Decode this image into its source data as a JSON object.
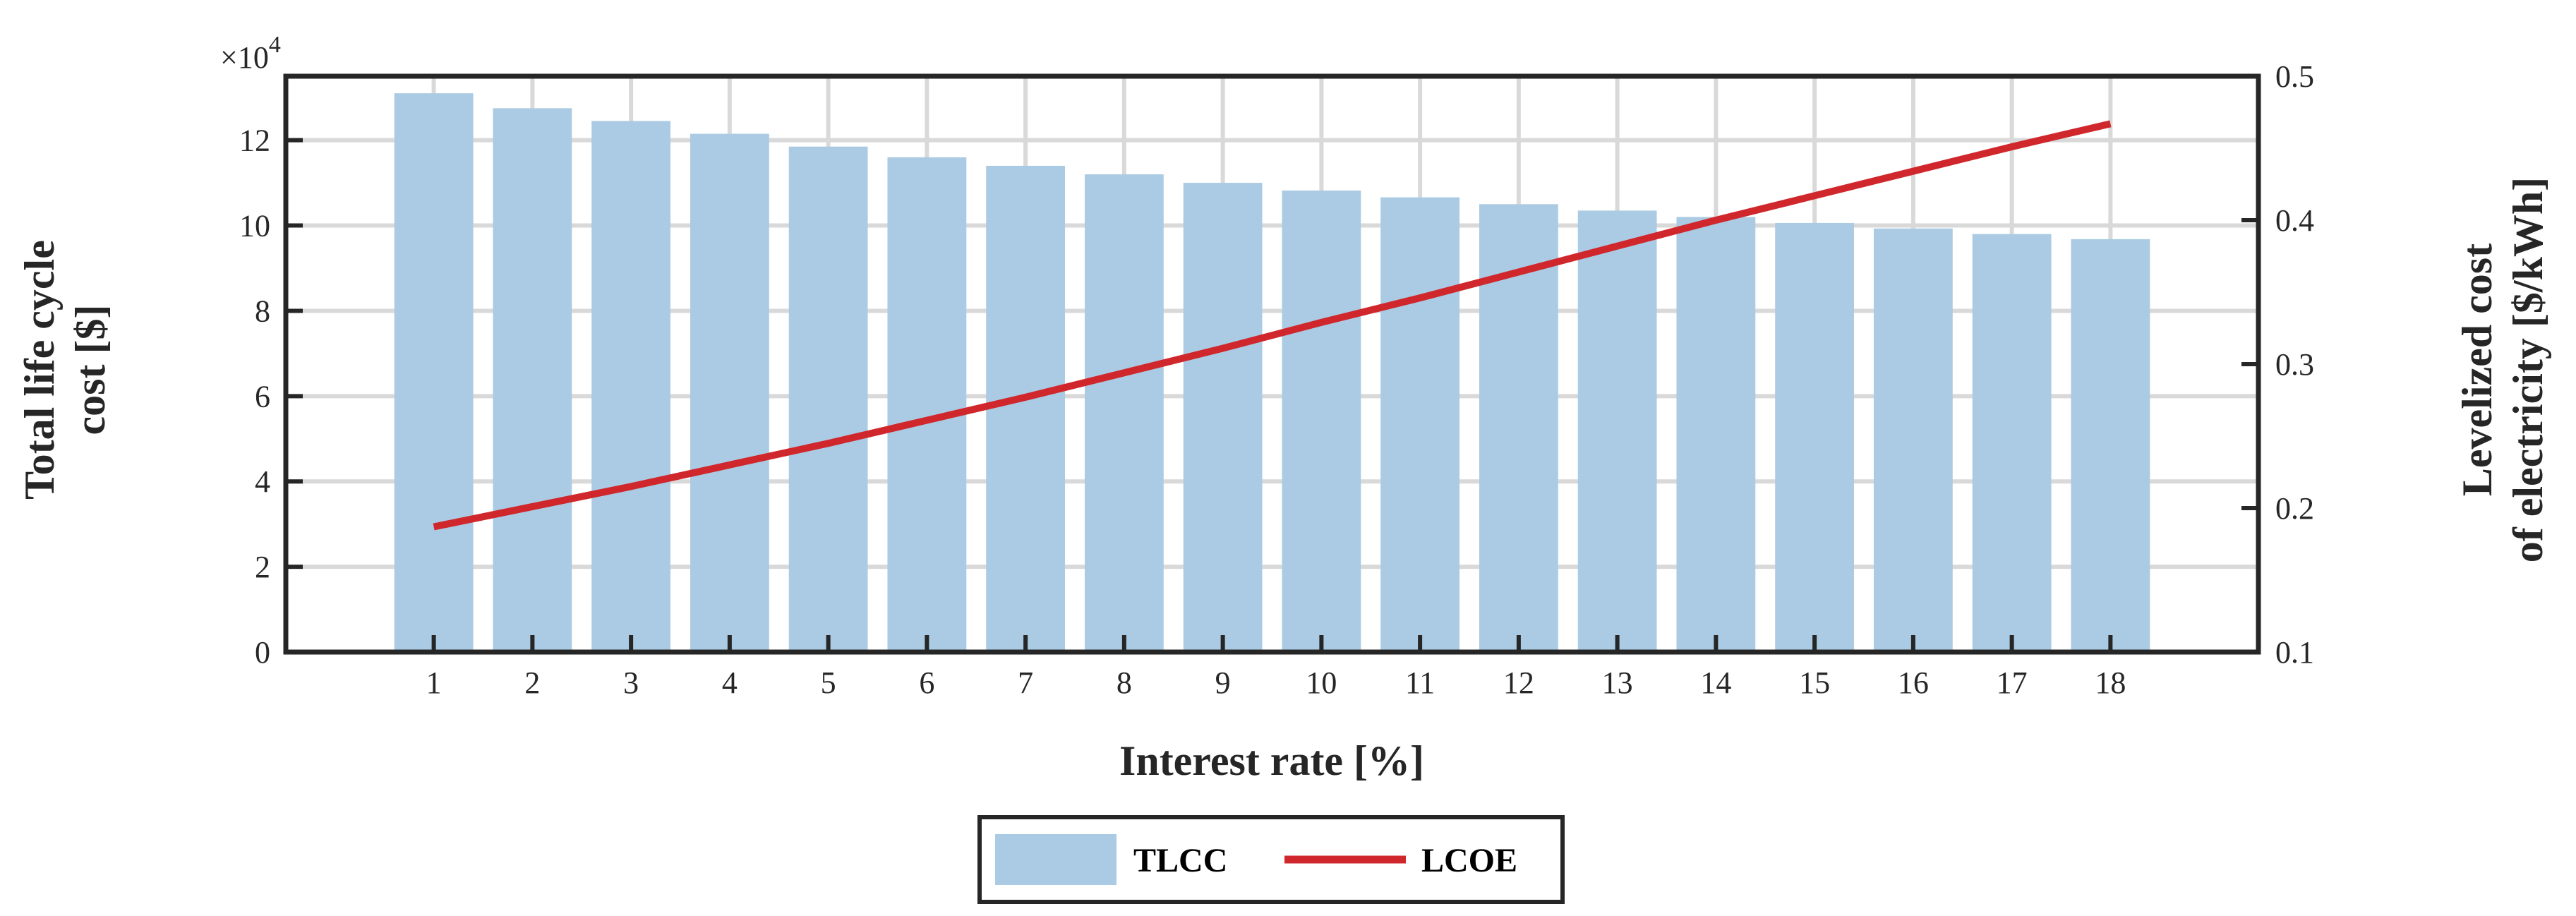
{
  "chart_data": {
    "type": "bar",
    "categories": [
      "1",
      "2",
      "3",
      "4",
      "5",
      "6",
      "7",
      "8",
      "9",
      "10",
      "11",
      "12",
      "13",
      "14",
      "15",
      "16",
      "17",
      "18"
    ],
    "xlabel": "Interest rate [%]",
    "ylabel_left": [
      "Total life cycle",
      "cost [$]"
    ],
    "ylabel_right": [
      "Levelized cost",
      "of electricity [$/kWh]"
    ],
    "y_left_multiplier": "×10",
    "y_left_multiplier_exp": "4",
    "y_left_scale": 10000,
    "y_left_ticks": [
      "0",
      "2",
      "4",
      "6",
      "8",
      "10",
      "12"
    ],
    "y_left_lim": [
      0,
      13.5
    ],
    "y_right_ticks": [
      "0.1",
      "0.2",
      "0.3",
      "0.4",
      "0.5"
    ],
    "y_right_lim": [
      0.1,
      0.5
    ],
    "grid": true,
    "legend_position": "bottom-center",
    "series": [
      {
        "name": "TLCC",
        "type": "bar",
        "axis": "left",
        "color": "#aacbe3",
        "values": [
          131000,
          127500,
          124500,
          121500,
          118500,
          116000,
          114000,
          112000,
          110000,
          108200,
          106600,
          105000,
          103500,
          102000,
          100600,
          99300,
          98000,
          96800
        ]
      },
      {
        "name": "LCOE",
        "type": "line",
        "axis": "right",
        "color": "#d0272c",
        "values": [
          0.187,
          0.201,
          0.215,
          0.23,
          0.245,
          0.261,
          0.277,
          0.294,
          0.311,
          0.329,
          0.346,
          0.364,
          0.382,
          0.4,
          0.417,
          0.434,
          0.451,
          0.467
        ]
      }
    ]
  }
}
